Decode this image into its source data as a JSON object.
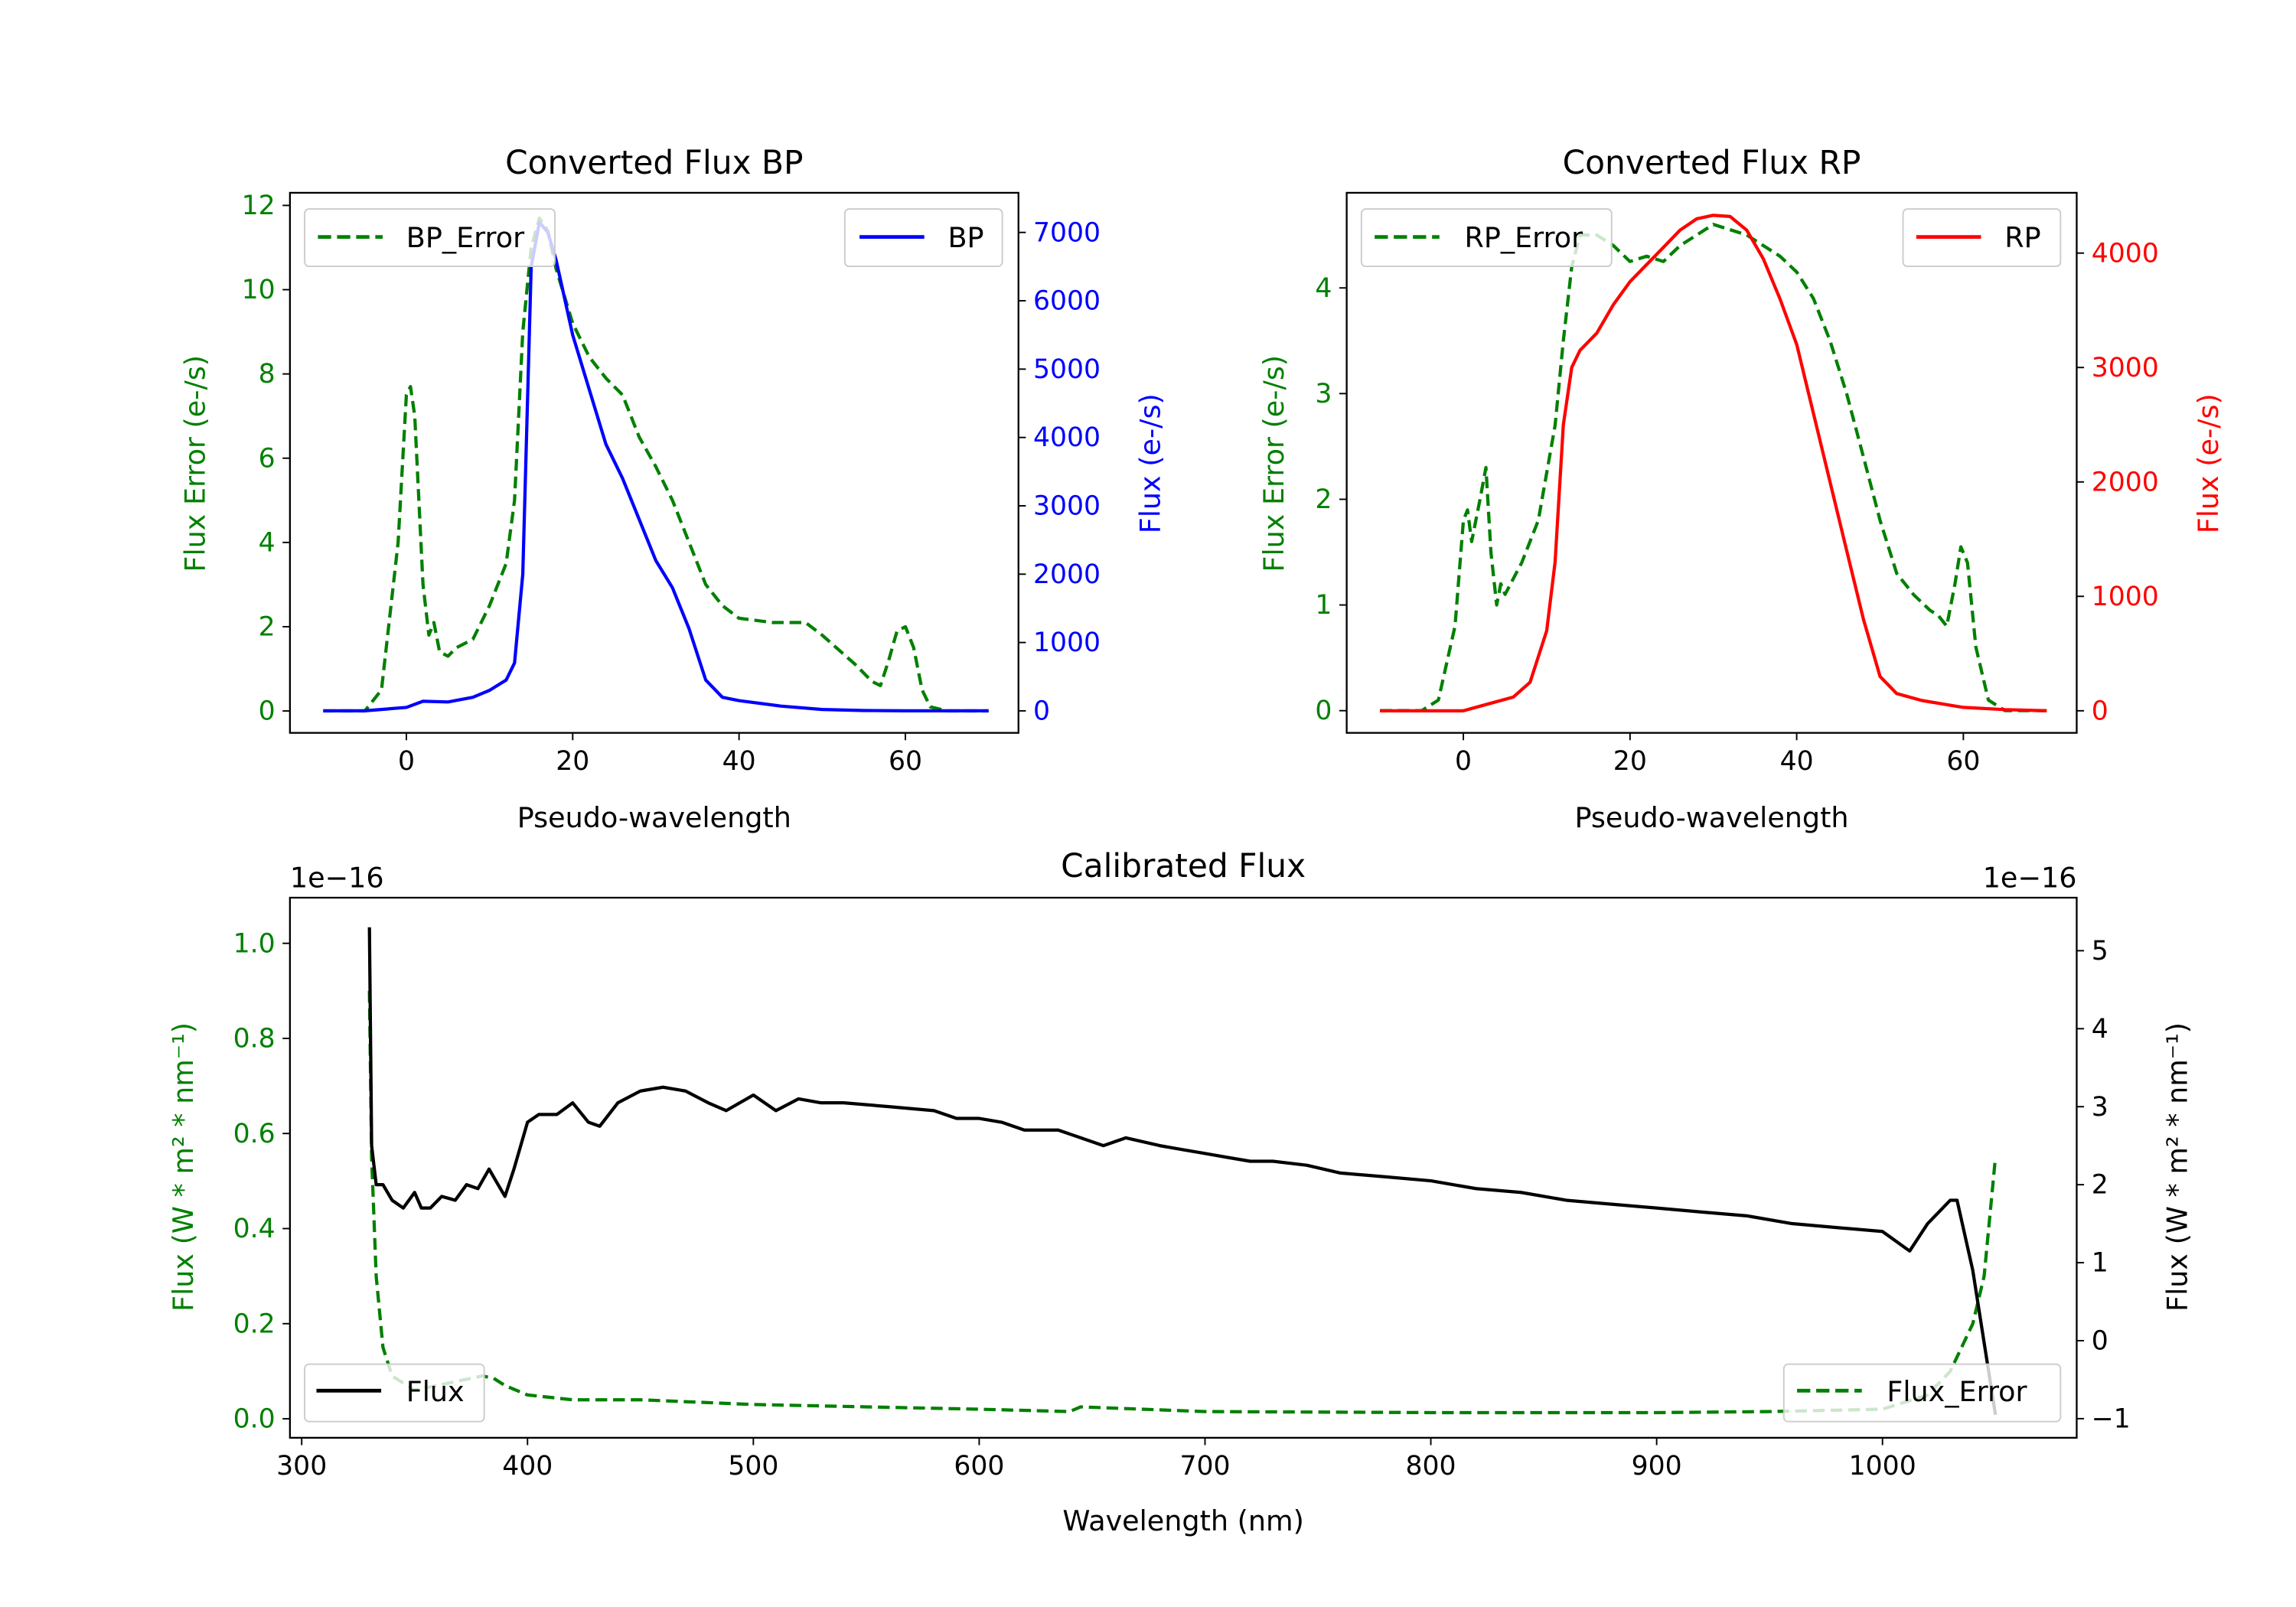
{
  "chart_data": [
    {
      "type": "line",
      "title": "Converted Flux BP",
      "xlabel": "Pseudo-wavelength",
      "ylabel": "Flux Error (e-/s)",
      "ylabel_right": "Flux (e-/s)",
      "xlim": [
        -14,
        73.6
      ],
      "ylim": [
        -0.52,
        12.3
      ],
      "ylim_right": [
        -322,
        7580
      ],
      "xticks": [
        0,
        20,
        40,
        60
      ],
      "yticks": [
        0,
        2,
        4,
        6,
        8,
        10,
        12
      ],
      "yticks_right": [
        0,
        1000,
        2000,
        3000,
        4000,
        5000,
        6000,
        7000
      ],
      "left_color": "#008000",
      "right_color": "#0000ff",
      "legend_left": {
        "label": "BP_Error",
        "placement": "upper-left"
      },
      "legend_right": {
        "label": "BP",
        "placement": "upper-right"
      },
      "series": [
        {
          "name": "BP_Error",
          "axis": "left",
          "style": "dashed",
          "color": "#008000",
          "x": [
            -10,
            -5,
            -3,
            -1,
            0,
            0.5,
            1,
            2,
            2.7,
            3.3,
            4,
            5,
            6,
            8,
            10,
            12,
            13,
            14,
            15,
            16,
            17,
            18,
            20,
            22,
            24,
            26,
            28,
            30,
            32,
            34,
            36,
            38,
            40,
            44,
            48,
            50,
            54,
            56,
            57,
            58,
            59,
            60,
            61,
            62,
            63,
            65,
            70
          ],
          "y": [
            0,
            0,
            0.5,
            4,
            7.5,
            7.7,
            7,
            3,
            1.8,
            2.1,
            1.4,
            1.3,
            1.5,
            1.7,
            2.5,
            3.5,
            5,
            9,
            11,
            11.7,
            11.4,
            10.5,
            9.2,
            8.4,
            7.9,
            7.5,
            6.5,
            5.8,
            5,
            4,
            3,
            2.5,
            2.2,
            2.1,
            2.1,
            1.8,
            1.1,
            0.7,
            0.6,
            1.2,
            1.9,
            2.0,
            1.5,
            0.5,
            0.1,
            0,
            0
          ]
        },
        {
          "name": "BP",
          "axis": "right",
          "style": "solid",
          "color": "#0000ff",
          "x": [
            -10,
            -5,
            0,
            2,
            5,
            8,
            10,
            12,
            13,
            14,
            15,
            16,
            17,
            18,
            20,
            22,
            24,
            26,
            28,
            30,
            32,
            34,
            36,
            38,
            40,
            45,
            50,
            55,
            60,
            65,
            70
          ],
          "y": [
            0,
            0,
            50,
            140,
            130,
            200,
            300,
            450,
            700,
            2000,
            6500,
            7150,
            7000,
            6600,
            5500,
            4700,
            3900,
            3400,
            2800,
            2200,
            1800,
            1200,
            450,
            200,
            150,
            70,
            20,
            5,
            0,
            0,
            0
          ]
        }
      ]
    },
    {
      "type": "line",
      "title": "Converted Flux RP",
      "xlabel": "Pseudo-wavelength",
      "ylabel": "Flux Error (e-/s)",
      "ylabel_right": "Flux (e-/s)",
      "xlim": [
        -14,
        73.6
      ],
      "ylim": [
        -0.21,
        4.9
      ],
      "ylim_right": [
        -193,
        4527
      ],
      "xticks": [
        0,
        20,
        40,
        60
      ],
      "yticks": [
        0,
        1,
        2,
        3,
        4
      ],
      "yticks_right": [
        0,
        1000,
        2000,
        3000,
        4000
      ],
      "left_color": "#008000",
      "right_color": "#ff0000",
      "legend_left": {
        "label": "RP_Error",
        "placement": "upper-left"
      },
      "legend_right": {
        "label": "RP",
        "placement": "upper-right"
      },
      "series": [
        {
          "name": "RP_Error",
          "axis": "left",
          "style": "dashed",
          "color": "#008000",
          "x": [
            -10,
            -5,
            -3,
            -1,
            0,
            0.5,
            1,
            2,
            2.7,
            3.3,
            4,
            4.5,
            5,
            7,
            9,
            11,
            12,
            13,
            14,
            16,
            18,
            20,
            22,
            24,
            26,
            28,
            30,
            32,
            34,
            36,
            38,
            40,
            42,
            44,
            46,
            48,
            50,
            52,
            54,
            56,
            57,
            58,
            59,
            59.7,
            60.5,
            61.5,
            63,
            65,
            70
          ],
          "y": [
            0,
            0,
            0.1,
            0.8,
            1.8,
            1.9,
            1.6,
            2,
            2.3,
            1.5,
            1,
            1.2,
            1.1,
            1.4,
            1.8,
            2.7,
            3.5,
            4.2,
            4.5,
            4.5,
            4.4,
            4.25,
            4.3,
            4.25,
            4.4,
            4.5,
            4.6,
            4.55,
            4.5,
            4.4,
            4.3,
            4.15,
            3.9,
            3.5,
            3,
            2.4,
            1.8,
            1.3,
            1.1,
            0.95,
            0.9,
            0.8,
            1.2,
            1.55,
            1.4,
            0.6,
            0.1,
            0,
            0
          ]
        },
        {
          "name": "RP",
          "axis": "right",
          "style": "solid",
          "color": "#ff0000",
          "x": [
            -10,
            0,
            3,
            6,
            8,
            10,
            11,
            12,
            13,
            14,
            16,
            18,
            20,
            22,
            24,
            26,
            28,
            30,
            32,
            34,
            36,
            38,
            40,
            42,
            44,
            46,
            48,
            50,
            52,
            55,
            60,
            65,
            70
          ],
          "y": [
            0,
            0,
            60,
            120,
            250,
            700,
            1300,
            2500,
            3000,
            3150,
            3300,
            3550,
            3750,
            3900,
            4050,
            4200,
            4300,
            4330,
            4320,
            4200,
            3950,
            3600,
            3200,
            2600,
            2000,
            1400,
            800,
            300,
            150,
            90,
            30,
            10,
            0
          ]
        }
      ]
    },
    {
      "type": "line",
      "title": "Calibrated Flux",
      "xlabel": "Wavelength (nm)",
      "ylabel": "Flux (W * m² * nm⁻¹)",
      "ylabel_right": "Flux (W * m² * nm⁻¹)",
      "offset_left": "1e−16",
      "offset_right": "1e−16",
      "xlim": [
        294.8,
        1086
      ],
      "ylim": [
        -0.04,
        1.096
      ],
      "ylim_right": [
        -1.245,
        5.68
      ],
      "xticks": [
        300,
        400,
        500,
        600,
        700,
        800,
        900,
        1000
      ],
      "yticks": [
        0.0,
        0.2,
        0.4,
        0.6,
        0.8,
        1.0
      ],
      "ytick_labels": [
        "0.0",
        "0.2",
        "0.4",
        "0.6",
        "0.8",
        "1.0"
      ],
      "yticks_right": [
        -1,
        0,
        1,
        2,
        3,
        4,
        5
      ],
      "left_color": "#008000",
      "right_color": "#000000",
      "legend_left": {
        "label": "Flux",
        "placement": "lower-left"
      },
      "legend_right": {
        "label": "Flux_Error",
        "placement": "lower-right"
      },
      "series": [
        {
          "name": "Flux_Error",
          "axis": "left",
          "style": "dashed",
          "color": "#008000",
          "x": [
            330,
            331,
            333,
            336,
            340,
            350,
            360,
            370,
            380,
            385,
            390,
            400,
            420,
            450,
            500,
            550,
            600,
            640,
            645,
            700,
            800,
            900,
            950,
            1000,
            1020,
            1030,
            1040,
            1045,
            1050
          ],
          "y": [
            0.9,
            0.55,
            0.3,
            0.15,
            0.09,
            0.06,
            0.07,
            0.08,
            0.09,
            0.085,
            0.07,
            0.05,
            0.04,
            0.04,
            0.03,
            0.025,
            0.02,
            0.015,
            0.025,
            0.015,
            0.013,
            0.013,
            0.015,
            0.02,
            0.05,
            0.1,
            0.2,
            0.3,
            0.55
          ]
        },
        {
          "name": "Flux",
          "axis": "right",
          "style": "solid",
          "color": "#000000",
          "x": [
            330,
            331,
            333,
            336,
            340,
            345,
            350,
            353,
            357,
            362,
            368,
            373,
            378,
            383,
            386,
            390,
            394,
            400,
            405,
            413,
            420,
            427,
            432,
            440,
            450,
            460,
            470,
            480,
            488,
            500,
            510,
            520,
            530,
            540,
            560,
            580,
            590,
            600,
            610,
            620,
            635,
            645,
            655,
            665,
            680,
            690,
            700,
            710,
            720,
            730,
            745,
            760,
            780,
            800,
            820,
            840,
            860,
            880,
            900,
            920,
            940,
            960,
            980,
            1000,
            1012,
            1020,
            1030,
            1033,
            1040,
            1050
          ],
          "y": [
            5.3,
            2.5,
            2.0,
            2.0,
            1.8,
            1.7,
            1.9,
            1.7,
            1.7,
            1.85,
            1.8,
            2.0,
            1.95,
            2.2,
            2.05,
            1.85,
            2.2,
            2.8,
            2.9,
            2.9,
            3.05,
            2.8,
            2.75,
            3.05,
            3.2,
            3.25,
            3.2,
            3.05,
            2.95,
            3.15,
            2.95,
            3.1,
            3.05,
            3.05,
            3.0,
            2.95,
            2.85,
            2.85,
            2.8,
            2.7,
            2.7,
            2.6,
            2.5,
            2.6,
            2.5,
            2.45,
            2.4,
            2.35,
            2.3,
            2.3,
            2.25,
            2.15,
            2.1,
            2.05,
            1.95,
            1.9,
            1.8,
            1.75,
            1.7,
            1.65,
            1.6,
            1.5,
            1.45,
            1.4,
            1.15,
            1.5,
            1.8,
            1.8,
            0.9,
            -0.95
          ]
        }
      ]
    }
  ]
}
